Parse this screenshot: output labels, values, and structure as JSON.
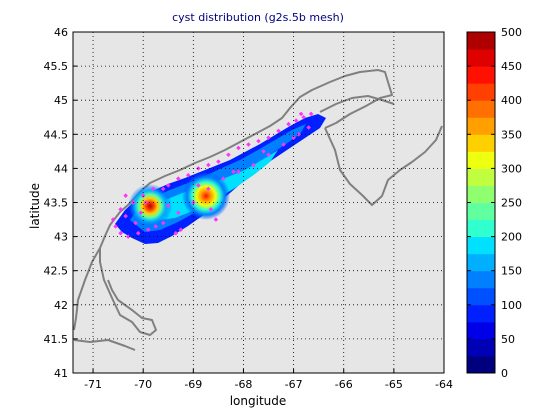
{
  "chart_data": {
    "type": "heatmap",
    "title": "cyst distribution (g2s.5b mesh)",
    "xlabel": "longitude",
    "ylabel": "latitude",
    "xlim": [
      -71.4,
      -64
    ],
    "ylim": [
      41,
      46
    ],
    "xticks": [
      "-71",
      "-70",
      "-69",
      "-68",
      "-67",
      "-66",
      "-65",
      "-64"
    ],
    "xtick_values": [
      -71,
      -70,
      -69,
      -68,
      -67,
      -66,
      -65,
      -64
    ],
    "yticks": [
      "41",
      "41.5",
      "42",
      "42.5",
      "43",
      "43.5",
      "44",
      "44.5",
      "45",
      "45.5",
      "46"
    ],
    "ytick_values": [
      41,
      41.5,
      42,
      42.5,
      43,
      43.5,
      44,
      44.5,
      45,
      45.5,
      46
    ],
    "grid": true,
    "background_color": "#e6e6e6",
    "coast_color": "#808080",
    "station_color": "#ff33ff",
    "colorbar": {
      "min": 0,
      "max": 500,
      "ticks": [
        "0",
        "50",
        "100",
        "150",
        "200",
        "250",
        "300",
        "350",
        "400",
        "450",
        "500"
      ],
      "tick_values": [
        0,
        50,
        100,
        150,
        200,
        250,
        300,
        350,
        400,
        450,
        500
      ],
      "colors": [
        "#00007f",
        "#0000b5",
        "#0000e8",
        "#0020ff",
        "#0050ff",
        "#0080ff",
        "#00b0ff",
        "#00e0ff",
        "#30ffcf",
        "#60ff9f",
        "#90ff6f",
        "#c0ff3f",
        "#efff10",
        "#ffd000",
        "#ffa000",
        "#ff7000",
        "#ff4000",
        "#ff1000",
        "#df0000",
        "#af0000"
      ]
    },
    "hotspots": [
      {
        "lon": -69.85,
        "lat": 43.42,
        "value": 500
      },
      {
        "lon": -68.7,
        "lat": 43.58,
        "value": 330
      }
    ],
    "stations": [
      [
        -70.55,
        43.15
      ],
      [
        -70.45,
        43.05
      ],
      [
        -70.3,
        43.0
      ],
      [
        -70.35,
        43.3
      ],
      [
        -70.15,
        43.2
      ],
      [
        -70.05,
        43.35
      ],
      [
        -69.95,
        43.5
      ],
      [
        -69.8,
        43.7
      ],
      [
        -69.6,
        43.7
      ],
      [
        -69.5,
        43.75
      ],
      [
        -69.3,
        43.85
      ],
      [
        -69.1,
        43.9
      ],
      [
        -68.9,
        44.0
      ],
      [
        -68.7,
        44.05
      ],
      [
        -68.5,
        44.1
      ],
      [
        -68.3,
        44.2
      ],
      [
        -68.1,
        44.3
      ],
      [
        -67.9,
        44.35
      ],
      [
        -67.7,
        44.4
      ],
      [
        -67.5,
        44.45
      ],
      [
        -67.3,
        44.55
      ],
      [
        -67.1,
        44.65
      ],
      [
        -66.95,
        44.7
      ],
      [
        -66.8,
        44.75
      ],
      [
        -66.65,
        44.8
      ],
      [
        -66.7,
        44.6
      ],
      [
        -66.9,
        44.5
      ],
      [
        -67.2,
        44.35
      ],
      [
        -67.5,
        44.2
      ],
      [
        -67.8,
        44.05
      ],
      [
        -68.1,
        43.95
      ],
      [
        -68.4,
        43.85
      ],
      [
        -68.7,
        43.7
      ],
      [
        -69.0,
        43.5
      ],
      [
        -69.3,
        43.35
      ],
      [
        -69.6,
        43.2
      ],
      [
        -69.9,
        43.1
      ],
      [
        -70.1,
        43.05
      ],
      [
        -70.35,
        43.6
      ],
      [
        -70.2,
        43.5
      ],
      [
        -70.0,
        43.6
      ],
      [
        -69.75,
        43.15
      ],
      [
        -69.5,
        43.45
      ],
      [
        -68.9,
        43.75
      ],
      [
        -68.2,
        43.95
      ],
      [
        -67.6,
        44.25
      ],
      [
        -67.0,
        44.45
      ],
      [
        -66.85,
        44.8
      ],
      [
        -69.35,
        43.05
      ],
      [
        -68.65,
        43.4
      ],
      [
        -70.45,
        43.4
      ],
      [
        -70.6,
        43.25
      ],
      [
        -69.25,
        43.1
      ],
      [
        -68.55,
        43.25
      ]
    ]
  }
}
